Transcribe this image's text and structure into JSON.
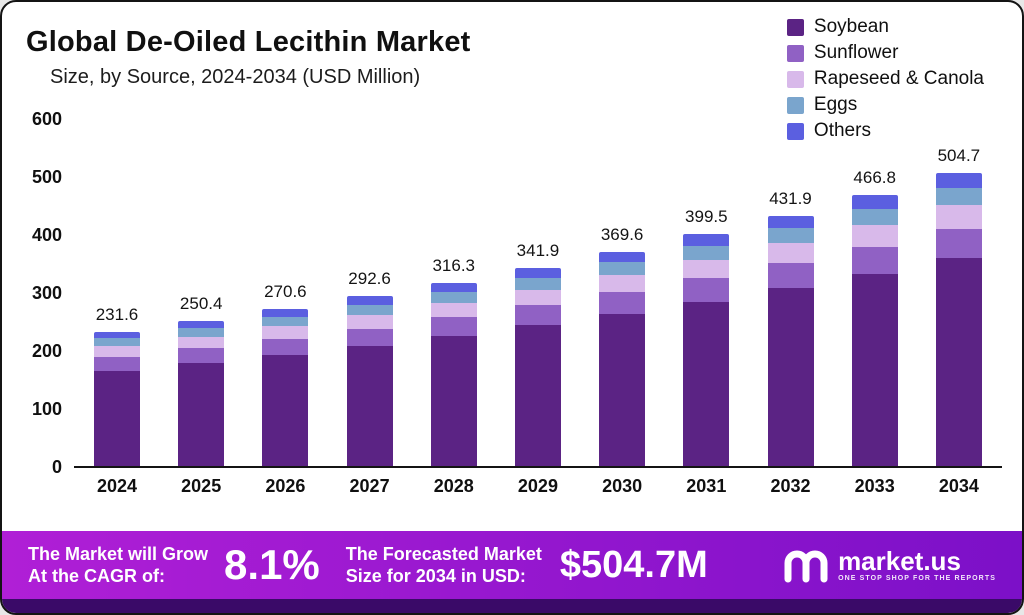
{
  "header": {
    "title": "Global De-Oiled Lecithin Market",
    "subtitle": "Size, by Source, 2024-2034 (USD Million)"
  },
  "chart_data": {
    "type": "bar",
    "stacked": true,
    "title": "Global De-Oiled Lecithin Market Size, by Source, 2024-2034 (USD Million)",
    "xlabel": "",
    "ylabel": "",
    "ylim": [
      0,
      600
    ],
    "yticks": [
      0,
      100,
      200,
      300,
      400,
      500,
      600
    ],
    "grid": false,
    "legend_position": "top-right",
    "categories": [
      "2024",
      "2025",
      "2026",
      "2027",
      "2028",
      "2029",
      "2030",
      "2031",
      "2032",
      "2033",
      "2034"
    ],
    "totals": [
      231.6,
      250.4,
      270.6,
      292.6,
      316.3,
      341.9,
      369.6,
      399.5,
      431.9,
      466.8,
      504.7
    ],
    "series": [
      {
        "name": "Soybean",
        "color": "#5b2384",
        "values": [
          164.4,
          177.8,
          192.1,
          207.7,
          224.6,
          242.7,
          262.4,
          283.6,
          306.7,
          331.4,
          358.3
        ]
      },
      {
        "name": "Sunflower",
        "color": "#9061c4",
        "values": [
          23.2,
          25.0,
          27.1,
          29.3,
          31.6,
          34.2,
          37.0,
          40.0,
          43.2,
          46.7,
          50.5
        ]
      },
      {
        "name": "Rapeseed & Canola",
        "color": "#d8b9ea",
        "values": [
          18.5,
          20.0,
          21.6,
          23.4,
          25.3,
          27.4,
          29.6,
          32.0,
          34.6,
          37.3,
          40.4
        ]
      },
      {
        "name": "Eggs",
        "color": "#7aa5cd",
        "values": [
          13.9,
          15.0,
          16.2,
          17.6,
          19.0,
          20.5,
          22.2,
          24.0,
          25.9,
          28.0,
          30.3
        ]
      },
      {
        "name": "Others",
        "color": "#5b5fe0",
        "values": [
          11.6,
          12.6,
          13.6,
          14.6,
          15.8,
          17.1,
          18.4,
          19.9,
          21.5,
          23.4,
          25.2
        ]
      }
    ]
  },
  "footer": {
    "cagr_text_line1": "The Market will Grow",
    "cagr_text_line2": "At the CAGR of:",
    "cagr_value": "8.1%",
    "forecast_text_line1": "The Forecasted Market",
    "forecast_text_line2": "Size for 2034 in USD:",
    "forecast_value": "$504.7M",
    "brand_name": "market.us",
    "brand_tagline": "ONE STOP SHOP FOR THE REPORTS",
    "gradient_start": "#b01fd6",
    "gradient_end": "#7c10c8",
    "strip_color": "#3a0a68"
  }
}
